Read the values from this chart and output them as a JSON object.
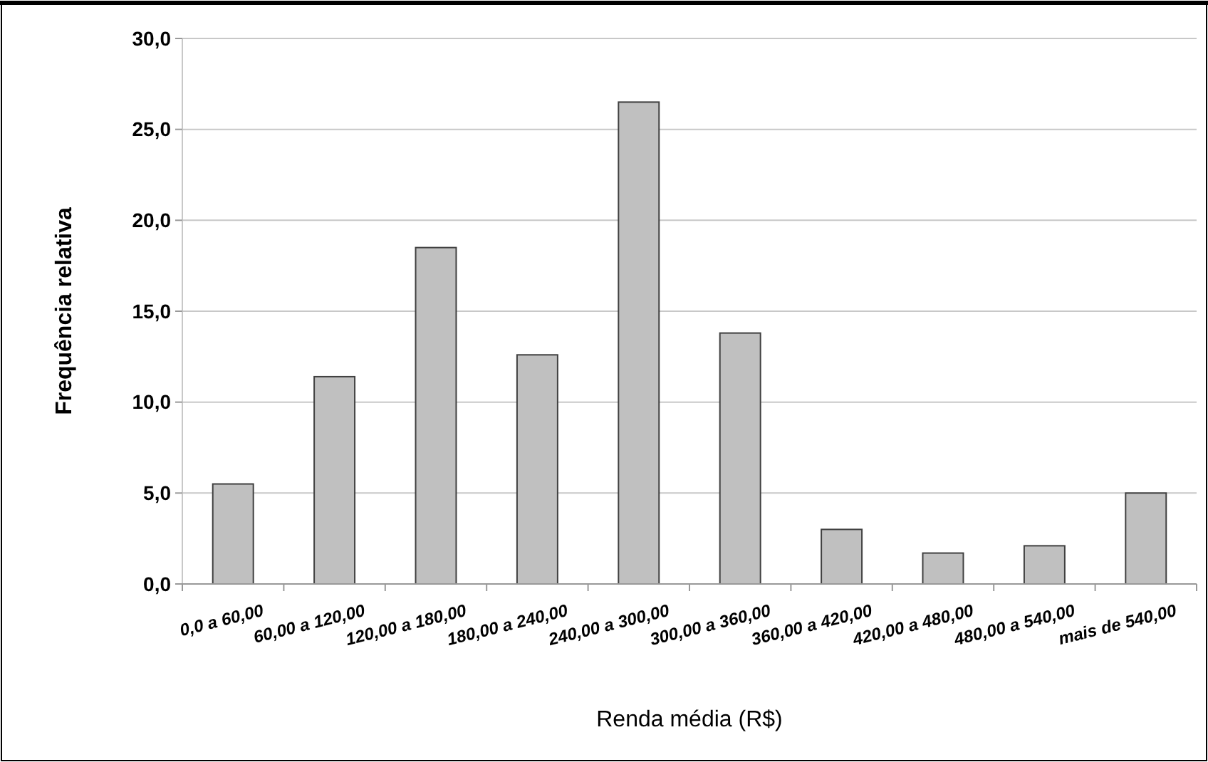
{
  "chart_data": {
    "type": "bar",
    "xlabel": "Renda média (R$)",
    "ylabel": "Frequência relativa",
    "categories": [
      "0,0 a 60,00",
      "60,00 a 120,00",
      "120,00 a 180,00",
      "180,00 a 240,00",
      "240,00 a 300,00",
      "300,00 a 360,00",
      "360,00 a 420,00",
      "420,00 a 480,00",
      "480,00 a 540,00",
      "mais de 540,00"
    ],
    "values": [
      5.5,
      11.4,
      18.5,
      12.6,
      26.5,
      13.8,
      3.0,
      1.7,
      2.1,
      5.0
    ],
    "color": "#c0c0c0",
    "ylim": [
      0,
      30
    ],
    "yticks": [
      {
        "value": 0,
        "label": "0,0"
      },
      {
        "value": 5,
        "label": "5,0"
      },
      {
        "value": 10,
        "label": "10,0"
      },
      {
        "value": 15,
        "label": "15,0"
      },
      {
        "value": 20,
        "label": "20,0"
      },
      {
        "value": 25,
        "label": "25,0"
      },
      {
        "value": 30,
        "label": "30,0"
      }
    ],
    "grid": "y"
  }
}
